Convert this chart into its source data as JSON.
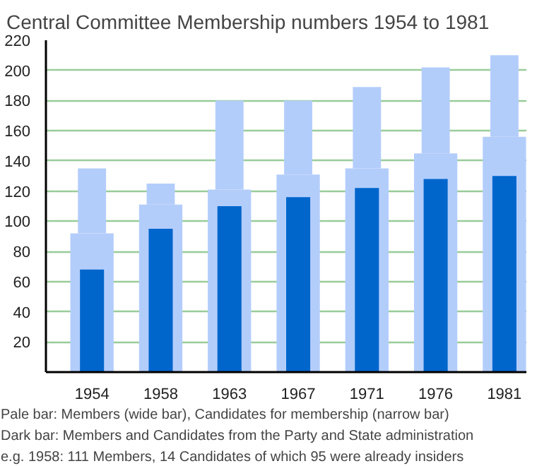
{
  "chart_data": {
    "type": "bar",
    "title": "Central Committee Membership numbers 1954 to 1981",
    "categories": [
      "1954",
      "1958",
      "1963",
      "1967",
      "1971",
      "1976",
      "1981"
    ],
    "series": [
      {
        "color": "#b3cdfb",
        "values": [
          92,
          111,
          121,
          131,
          135,
          145,
          156
        ]
      },
      {
        "color": "#b3cdfb",
        "values": [
          43,
          14,
          59,
          49,
          54,
          57,
          54
        ],
        "base": [
          92,
          111,
          121,
          131,
          135,
          145,
          156
        ]
      },
      {
        "color": "#0066cc",
        "values": [
          68,
          95,
          110,
          116,
          122,
          128,
          130
        ]
      }
    ],
    "ylim": [
      0,
      220
    ],
    "yticks": [
      20,
      40,
      60,
      80,
      100,
      120,
      140,
      160,
      180,
      200,
      220
    ],
    "grid": "y",
    "annotations": [
      "Pale bar: Members (wide bar), Candidates for membership (narrow bar)",
      "Dark bar: Members and Candidates from the Party and State administration",
      "e.g. 1958:  111 Members, 14 Candidates of which 95 were already insiders"
    ]
  }
}
